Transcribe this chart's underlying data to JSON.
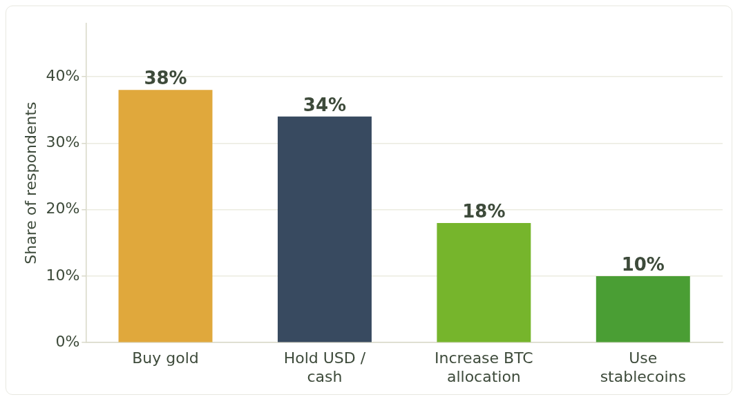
{
  "chart_data": {
    "type": "bar",
    "ylabel": "Share of respondents",
    "categories": [
      "Buy gold",
      "Hold USD / cash",
      "Increase BTC allocation",
      "Use stablecoins"
    ],
    "values": [
      38,
      34,
      18,
      10
    ],
    "colors": [
      "#e0a83c",
      "#384a60",
      "#76b52c",
      "#4a9e34"
    ],
    "value_labels": [
      "38%",
      "34%",
      "18%",
      "10%"
    ],
    "ylim": [
      0,
      48
    ],
    "yticks": [
      {
        "value": 0,
        "label": "0%"
      },
      {
        "value": 10,
        "label": "10%"
      },
      {
        "value": 20,
        "label": "20%"
      },
      {
        "value": 30,
        "label": "30%"
      },
      {
        "value": 40,
        "label": "40%"
      }
    ],
    "grid": "y",
    "legend": false
  }
}
